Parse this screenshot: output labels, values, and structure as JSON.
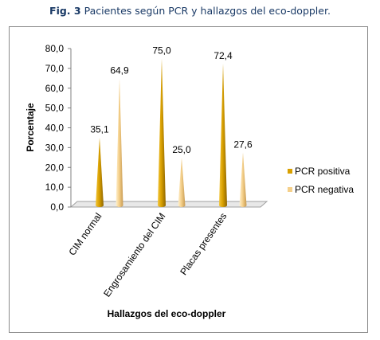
{
  "caption": {
    "prefix": "Fig. 3",
    "text": "Pacientes según PCR y hallazgos del eco-doppler."
  },
  "chart_data": {
    "type": "bar",
    "shape": "cone-3d",
    "categories": [
      "CIM normal",
      "Engrosamiento del CIM",
      "Placas presentes"
    ],
    "series": [
      {
        "name": "PCR positiva",
        "values": [
          35.1,
          75.0,
          72.4
        ],
        "color": "#d9a000"
      },
      {
        "name": "PCR negativa",
        "values": [
          64.9,
          25.0,
          27.6
        ],
        "color": "#f5d08a"
      }
    ],
    "data_labels": [
      [
        "35,1",
        "75,0",
        "72,4"
      ],
      [
        "64,9",
        "25,0",
        "27,6"
      ]
    ],
    "ylabel": "Porcentaje",
    "xlabel": "Hallazgos del eco-doppler",
    "ylim": [
      0,
      80
    ],
    "yticks": [
      "0,0",
      "10,0",
      "20,0",
      "30,0",
      "40,0",
      "50,0",
      "60,0",
      "70,0",
      "80,0"
    ],
    "grid": false,
    "legend": "right"
  }
}
